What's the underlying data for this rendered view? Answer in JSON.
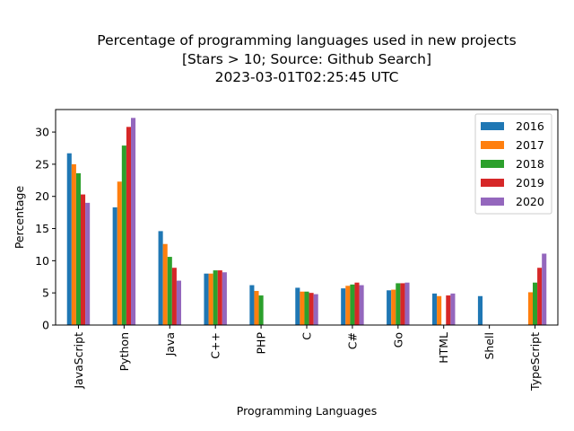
{
  "chart_data": {
    "type": "bar",
    "title": [
      "Percentage of programming languages used in new projects",
      "[Stars > 10; Source: Github Search]",
      "2023-03-01T02:25:45 UTC"
    ],
    "xlabel": "Programming Languages",
    "ylabel": "Percentage",
    "ylim": [
      0,
      33.5
    ],
    "yticks": [
      "0",
      "5",
      "10",
      "15",
      "20",
      "25",
      "30"
    ],
    "legend_position": "top-right",
    "categories": [
      "JavaScript",
      "Python",
      "Java",
      "C++",
      "PHP",
      "C",
      "C#",
      "Go",
      "HTML",
      "Shell",
      "TypeScript"
    ],
    "series": [
      {
        "name": "2016",
        "color": "#1f77b4",
        "values": [
          26.7,
          18.3,
          14.6,
          8.0,
          6.2,
          5.8,
          5.7,
          5.4,
          4.9,
          4.5,
          0
        ]
      },
      {
        "name": "2017",
        "color": "#ff7f0e",
        "values": [
          25.0,
          22.3,
          12.6,
          8.0,
          5.3,
          5.2,
          6.1,
          5.5,
          4.5,
          0,
          5.1
        ]
      },
      {
        "name": "2018",
        "color": "#2ca02c",
        "values": [
          23.6,
          27.9,
          10.6,
          8.5,
          4.6,
          5.2,
          6.3,
          6.5,
          0,
          0,
          6.6
        ]
      },
      {
        "name": "2019",
        "color": "#d62728",
        "values": [
          20.3,
          30.8,
          8.9,
          8.5,
          0,
          5.0,
          6.6,
          6.5,
          4.6,
          0,
          8.9
        ]
      },
      {
        "name": "2020",
        "color": "#9467bd",
        "values": [
          19.0,
          32.2,
          6.9,
          8.2,
          0,
          4.8,
          6.2,
          6.6,
          4.9,
          0,
          11.1
        ]
      }
    ]
  }
}
